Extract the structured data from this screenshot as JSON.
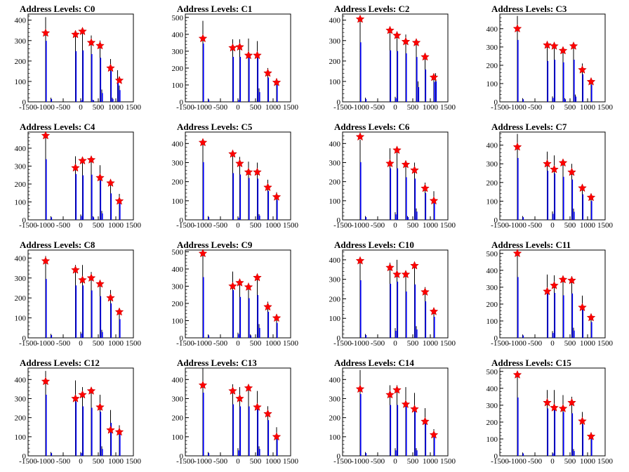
{
  "chart_data": [
    {
      "type": "bar",
      "title": "Address Levels: C0",
      "xlim": [
        -1500,
        1500
      ],
      "ylim": [
        0,
        430
      ],
      "yticks": [
        0,
        100,
        200,
        300,
        400
      ],
      "xticks": [
        -1500,
        -1000,
        -500,
        0,
        500,
        1000,
        1500
      ],
      "series": [
        {
          "x": [
            -1000,
            -850,
            -150,
            0,
            50,
            300,
            350,
            550,
            600,
            850,
            900,
            1050,
            1100
          ],
          "values": [
            415,
            20,
            345,
            10,
            350,
            325,
            10,
            300,
            60,
            210,
            20,
            155,
            80
          ]
        }
      ],
      "markers": {
        "x": [
          -1000,
          -150,
          50,
          300,
          550,
          850,
          1100
        ],
        "y": [
          337,
          330,
          345,
          290,
          275,
          165,
          105
        ]
      }
    },
    {
      "type": "bar",
      "title": "Address Levels: C1",
      "xlim": [
        -1500,
        1500
      ],
      "ylim": [
        0,
        520
      ],
      "yticks": [
        0,
        100,
        200,
        300,
        400,
        500
      ],
      "xticks": [
        -1500,
        -1000,
        -500,
        0,
        500,
        1000,
        1500
      ],
      "series": [
        {
          "x": [
            -1000,
            -850,
            -150,
            0,
            50,
            300,
            550,
            600,
            850,
            1100
          ],
          "values": [
            480,
            20,
            370,
            15,
            370,
            375,
            360,
            80,
            200,
            140
          ]
        }
      ],
      "markers": {
        "x": [
          -1000,
          -150,
          50,
          300,
          550,
          850,
          1100
        ],
        "y": [
          375,
          320,
          325,
          275,
          275,
          170,
          115
        ]
      }
    },
    {
      "type": "bar",
      "title": "Address Levels: C2",
      "xlim": [
        -1500,
        1500
      ],
      "ylim": [
        0,
        430
      ],
      "yticks": [
        0,
        100,
        200,
        300,
        400
      ],
      "xticks": [
        -1500,
        -1000,
        -500,
        0,
        500,
        1000,
        1500
      ],
      "series": [
        {
          "x": [
            -1000,
            -850,
            -150,
            0,
            50,
            300,
            600,
            650,
            850,
            1100,
            1150
          ],
          "values": [
            405,
            20,
            350,
            25,
            345,
            330,
            305,
            100,
            220,
            135,
            140
          ]
        }
      ],
      "markers": {
        "x": [
          -1000,
          -150,
          50,
          300,
          600,
          850,
          1100
        ],
        "y": [
          405,
          350,
          325,
          295,
          290,
          220,
          120
        ]
      }
    },
    {
      "type": "bar",
      "title": "Address Levels: C3",
      "xlim": [
        -1500,
        1500
      ],
      "ylim": [
        0,
        480
      ],
      "yticks": [
        0,
        100,
        200,
        300,
        400
      ],
      "xticks": [
        -1500,
        -1000,
        -500,
        0,
        500,
        1000,
        1500
      ],
      "series": [
        {
          "x": [
            -1000,
            -850,
            -150,
            0,
            50,
            300,
            350,
            600,
            650,
            850,
            1100
          ],
          "values": [
            470,
            20,
            310,
            30,
            320,
            300,
            20,
            320,
            40,
            210,
            130
          ]
        }
      ],
      "markers": {
        "x": [
          -1000,
          -150,
          50,
          300,
          600,
          850,
          1100
        ],
        "y": [
          400,
          310,
          305,
          280,
          305,
          175,
          110
        ]
      }
    },
    {
      "type": "bar",
      "title": "Address Levels: C4",
      "xlim": [
        -1500,
        1500
      ],
      "ylim": [
        0,
        490
      ],
      "yticks": [
        0,
        100,
        200,
        300,
        400
      ],
      "xticks": [
        -1500,
        -1000,
        -500,
        0,
        500,
        1000,
        1500
      ],
      "series": [
        {
          "x": [
            -1000,
            -850,
            -150,
            0,
            50,
            300,
            350,
            550,
            600,
            850,
            1100
          ],
          "values": [
            470,
            20,
            355,
            30,
            345,
            350,
            20,
            305,
            50,
            205,
            145
          ]
        }
      ],
      "markers": {
        "x": [
          -1000,
          -150,
          50,
          300,
          550,
          850,
          1100
        ],
        "y": [
          470,
          290,
          330,
          335,
          235,
          205,
          105
        ]
      }
    },
    {
      "type": "bar",
      "title": "Address Levels: C5",
      "xlim": [
        -1500,
        1500
      ],
      "ylim": [
        0,
        460
      ],
      "yticks": [
        0,
        100,
        200,
        300,
        400
      ],
      "xticks": [
        -1500,
        -1000,
        -500,
        0,
        500,
        1000,
        1500
      ],
      "series": [
        {
          "x": [
            -1000,
            -850,
            -150,
            0,
            50,
            300,
            550,
            600,
            850,
            1100
          ],
          "values": [
            420,
            20,
            340,
            15,
            330,
            305,
            300,
            30,
            210,
            145
          ]
        }
      ],
      "markers": {
        "x": [
          -1000,
          -150,
          50,
          300,
          550,
          850,
          1100
        ],
        "y": [
          405,
          345,
          295,
          250,
          250,
          170,
          120
        ]
      }
    },
    {
      "type": "bar",
      "title": "Address Levels: C6",
      "xlim": [
        -1500,
        1500
      ],
      "ylim": [
        0,
        460
      ],
      "yticks": [
        0,
        100,
        200,
        300,
        400
      ],
      "xticks": [
        -1500,
        -1000,
        -500,
        0,
        500,
        1000,
        1500
      ],
      "series": [
        {
          "x": [
            -1000,
            -850,
            -150,
            0,
            50,
            300,
            350,
            550,
            600,
            850,
            1100
          ],
          "values": [
            420,
            20,
            375,
            40,
            375,
            310,
            20,
            300,
            60,
            195,
            150
          ]
        }
      ],
      "markers": {
        "x": [
          -1000,
          -150,
          50,
          300,
          550,
          850,
          1100
        ],
        "y": [
          435,
          295,
          365,
          290,
          260,
          165,
          100
        ]
      }
    },
    {
      "type": "bar",
      "title": "Address Levels: C7",
      "xlim": [
        -1500,
        1500
      ],
      "ylim": [
        0,
        470
      ],
      "yticks": [
        0,
        100,
        200,
        300,
        400
      ],
      "xticks": [
        -1500,
        -1000,
        -500,
        0,
        500,
        1000,
        1500
      ],
      "series": [
        {
          "x": [
            -1000,
            -850,
            -150,
            0,
            50,
            300,
            550,
            600,
            850,
            1100
          ],
          "values": [
            460,
            20,
            365,
            45,
            345,
            320,
            300,
            60,
            190,
            140
          ]
        }
      ],
      "markers": {
        "x": [
          -1000,
          -150,
          50,
          300,
          550,
          850,
          1100
        ],
        "y": [
          390,
          300,
          270,
          305,
          255,
          170,
          120
        ]
      }
    },
    {
      "type": "bar",
      "title": "Address Levels: C8",
      "xlim": [
        -1500,
        1500
      ],
      "ylim": [
        0,
        440
      ],
      "yticks": [
        0,
        100,
        200,
        300,
        400
      ],
      "xticks": [
        -1500,
        -1000,
        -500,
        0,
        500,
        1000,
        1500
      ],
      "series": [
        {
          "x": [
            -1000,
            -850,
            -150,
            0,
            50,
            300,
            550,
            600,
            850,
            1100
          ],
          "values": [
            410,
            20,
            365,
            30,
            365,
            330,
            290,
            40,
            240,
            130
          ]
        }
      ],
      "markers": {
        "x": [
          -1000,
          -150,
          50,
          300,
          550,
          850,
          1100
        ],
        "y": [
          385,
          340,
          290,
          300,
          270,
          200,
          130
        ]
      }
    },
    {
      "type": "bar",
      "title": "Address Levels: C9",
      "xlim": [
        -1500,
        1500
      ],
      "ylim": [
        0,
        510
      ],
      "yticks": [
        0,
        100,
        200,
        300,
        400,
        500
      ],
      "xticks": [
        -1500,
        -1000,
        -500,
        0,
        500,
        1000,
        1500
      ],
      "series": [
        {
          "x": [
            -1000,
            -850,
            -150,
            0,
            50,
            300,
            350,
            550,
            600,
            850,
            1100
          ],
          "values": [
            490,
            20,
            385,
            30,
            330,
            320,
            20,
            345,
            80,
            210,
            120
          ]
        }
      ],
      "markers": {
        "x": [
          -1000,
          -150,
          50,
          300,
          550,
          850,
          1100
        ],
        "y": [
          490,
          300,
          320,
          295,
          350,
          180,
          115
        ]
      }
    },
    {
      "type": "bar",
      "title": "Address Levels: C10",
      "xlim": [
        -1500,
        1500
      ],
      "ylim": [
        0,
        450
      ],
      "yticks": [
        0,
        100,
        200,
        300,
        400
      ],
      "xticks": [
        -1500,
        -1000,
        -500,
        0,
        500,
        1000,
        1500
      ],
      "series": [
        {
          "x": [
            -1000,
            -850,
            -150,
            0,
            50,
            300,
            550,
            600,
            850,
            1100
          ],
          "values": [
            410,
            20,
            385,
            50,
            400,
            330,
            380,
            60,
            260,
            150
          ]
        }
      ],
      "markers": {
        "x": [
          -1000,
          -150,
          50,
          300,
          550,
          850,
          1100
        ],
        "y": [
          395,
          360,
          325,
          325,
          370,
          235,
          135
        ]
      }
    },
    {
      "type": "bar",
      "title": "Address Levels: C11",
      "xlim": [
        -1500,
        1500
      ],
      "ylim": [
        0,
        520
      ],
      "yticks": [
        0,
        100,
        200,
        300,
        400,
        500
      ],
      "xticks": [
        -1500,
        -1000,
        -500,
        0,
        500,
        1000,
        1500
      ],
      "series": [
        {
          "x": [
            -1000,
            -850,
            -150,
            0,
            50,
            300,
            550,
            600,
            850,
            1100
          ],
          "values": [
            500,
            20,
            375,
            40,
            370,
            350,
            365,
            60,
            250,
            130
          ]
        }
      ],
      "markers": {
        "x": [
          -1000,
          -150,
          50,
          300,
          550,
          850,
          1100
        ],
        "y": [
          500,
          275,
          310,
          345,
          340,
          180,
          120
        ]
      }
    },
    {
      "type": "bar",
      "title": "Address Levels: C12",
      "xlim": [
        -1500,
        1500
      ],
      "ylim": [
        0,
        460
      ],
      "yticks": [
        0,
        100,
        200,
        300,
        400
      ],
      "xticks": [
        -1500,
        -1000,
        -500,
        0,
        500,
        1000,
        1500
      ],
      "series": [
        {
          "x": [
            -1000,
            -850,
            -150,
            0,
            50,
            300,
            550,
            600,
            850,
            1100
          ],
          "values": [
            445,
            20,
            395,
            20,
            360,
            350,
            320,
            50,
            240,
            160
          ]
        }
      ],
      "markers": {
        "x": [
          -1000,
          -150,
          50,
          300,
          550,
          850,
          1100
        ],
        "y": [
          390,
          300,
          320,
          340,
          255,
          135,
          125
        ]
      }
    },
    {
      "type": "bar",
      "title": "Address Levels: C13",
      "xlim": [
        -1500,
        1500
      ],
      "ylim": [
        0,
        460
      ],
      "yticks": [
        0,
        100,
        200,
        300,
        400
      ],
      "xticks": [
        -1500,
        -1000,
        -500,
        0,
        500,
        1000,
        1500
      ],
      "series": [
        {
          "x": [
            -1000,
            -850,
            -150,
            0,
            50,
            300,
            550,
            600,
            850,
            1100
          ],
          "values": [
            460,
            20,
            375,
            40,
            360,
            360,
            340,
            50,
            260,
            150
          ]
        }
      ],
      "markers": {
        "x": [
          -1000,
          -150,
          50,
          300,
          550,
          850,
          1100
        ],
        "y": [
          370,
          340,
          300,
          355,
          255,
          220,
          100
        ]
      }
    },
    {
      "type": "bar",
      "title": "Address Levels: C14",
      "xlim": [
        -1500,
        1500
      ],
      "ylim": [
        0,
        460
      ],
      "yticks": [
        0,
        100,
        200,
        300,
        400
      ],
      "xticks": [
        -1500,
        -1000,
        -500,
        0,
        500,
        1000,
        1500
      ],
      "series": [
        {
          "x": [
            -1000,
            -850,
            -150,
            0,
            50,
            300,
            550,
            600,
            850,
            1100
          ],
          "values": [
            450,
            20,
            370,
            40,
            370,
            360,
            330,
            40,
            250,
            140
          ]
        }
      ],
      "markers": {
        "x": [
          -1000,
          -150,
          50,
          300,
          550,
          850,
          1100
        ],
        "y": [
          350,
          320,
          345,
          270,
          245,
          180,
          110
        ]
      }
    },
    {
      "type": "bar",
      "title": "Address Levels: C15",
      "xlim": [
        -1500,
        1500
      ],
      "ylim": [
        0,
        520
      ],
      "yticks": [
        0,
        100,
        200,
        300,
        400,
        500
      ],
      "xticks": [
        -1500,
        -1000,
        -500,
        0,
        500,
        1000,
        1500
      ],
      "series": [
        {
          "x": [
            -1000,
            -850,
            -150,
            0,
            50,
            300,
            550,
            600,
            850,
            1100
          ],
          "values": [
            480,
            20,
            390,
            20,
            390,
            360,
            350,
            40,
            260,
            140
          ]
        }
      ],
      "markers": {
        "x": [
          -1000,
          -150,
          50,
          300,
          550,
          850,
          1100
        ],
        "y": [
          480,
          315,
          285,
          280,
          315,
          205,
          115
        ]
      }
    }
  ],
  "style": {
    "bar_color": "#0000ff",
    "tall_line_color": "#000000",
    "marker_color": "#ff0000",
    "axis_color": "#000000"
  }
}
